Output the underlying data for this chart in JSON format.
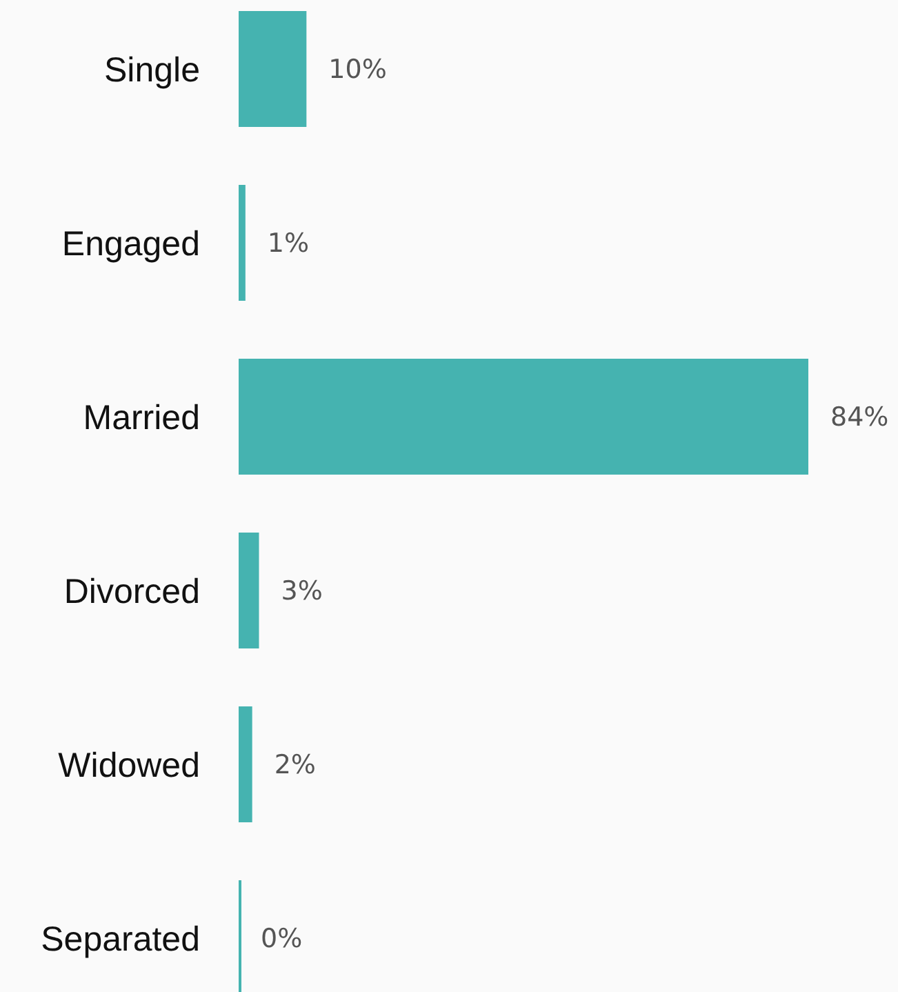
{
  "chart_data": {
    "type": "bar",
    "orientation": "horizontal",
    "categories": [
      "Single",
      "Engaged",
      "Married",
      "Divorced",
      "Widowed",
      "Separated"
    ],
    "values": [
      10,
      1,
      84,
      3,
      2,
      0
    ],
    "value_labels": [
      "10%",
      "1%",
      "84%",
      "3%",
      "2%",
      "0%"
    ],
    "color": "#45b3b0"
  }
}
